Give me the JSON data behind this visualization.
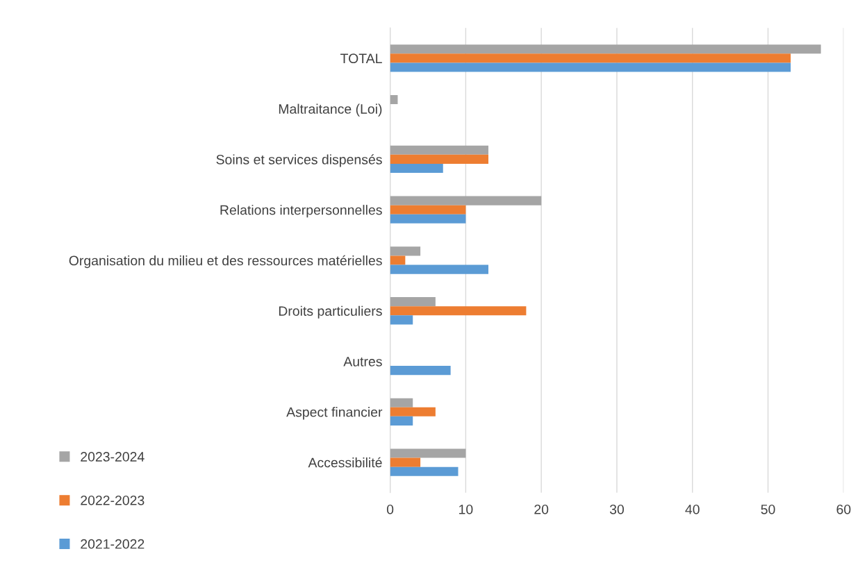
{
  "chart_data": {
    "type": "bar",
    "orientation": "horizontal",
    "categories": [
      "TOTAL",
      "Maltraitance (Loi)",
      "Soins et services dispensés",
      "Relations interpersonnelles",
      "Organisation du milieu et des ressources matérielles",
      "Droits particuliers",
      "Autres",
      "Aspect financier",
      "Accessibilité"
    ],
    "series": [
      {
        "name": "2023-2024",
        "color": "#a5a5a5",
        "values": [
          57,
          1,
          13,
          20,
          4,
          6,
          null,
          3,
          10
        ]
      },
      {
        "name": "2022-2023",
        "color": "#ed7d31",
        "values": [
          53,
          null,
          13,
          10,
          2,
          18,
          null,
          6,
          4
        ]
      },
      {
        "name": "2021-2022",
        "color": "#5b9bd5",
        "values": [
          53,
          null,
          7,
          10,
          13,
          3,
          8,
          3,
          9
        ]
      }
    ],
    "xlim": [
      0,
      60
    ],
    "xticks": [
      0,
      10,
      20,
      30,
      40,
      50,
      60
    ],
    "grid": "x",
    "legend": "bottom left"
  }
}
